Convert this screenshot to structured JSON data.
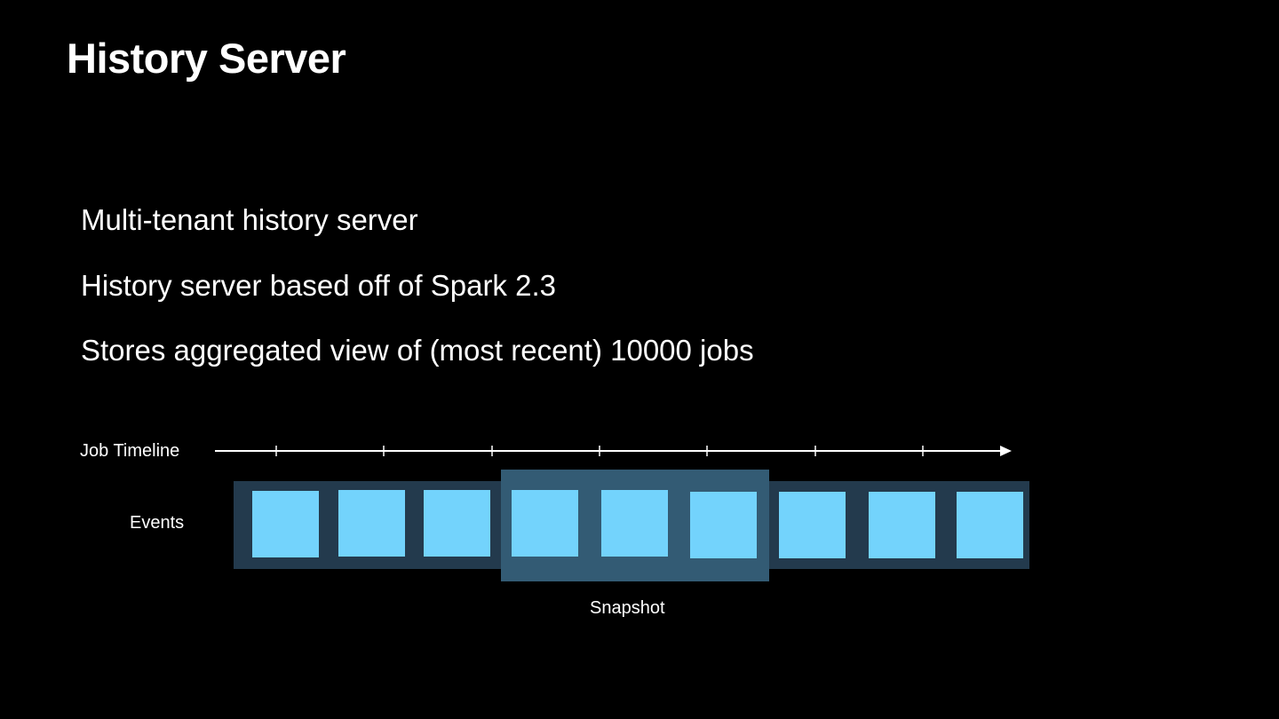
{
  "slide": {
    "title": "History Server",
    "bullets": [
      "Multi-tenant history server",
      "History server based off of Spark 2.3",
      "Stores aggregated view of (most recent) 10000 jobs"
    ]
  },
  "diagram": {
    "timeline_label": "Job Timeline",
    "events_label": "Events",
    "snapshot_label": "Snapshot",
    "event_count": 9,
    "snapshot_event_range": [
      4,
      6
    ],
    "tick_count": 7,
    "colors": {
      "background": "#000000",
      "text": "#ffffff",
      "timeline": "#ffffff",
      "events_band": "#233a4d",
      "snapshot_band": "#335b74",
      "event_box": "#73d3fc"
    }
  }
}
